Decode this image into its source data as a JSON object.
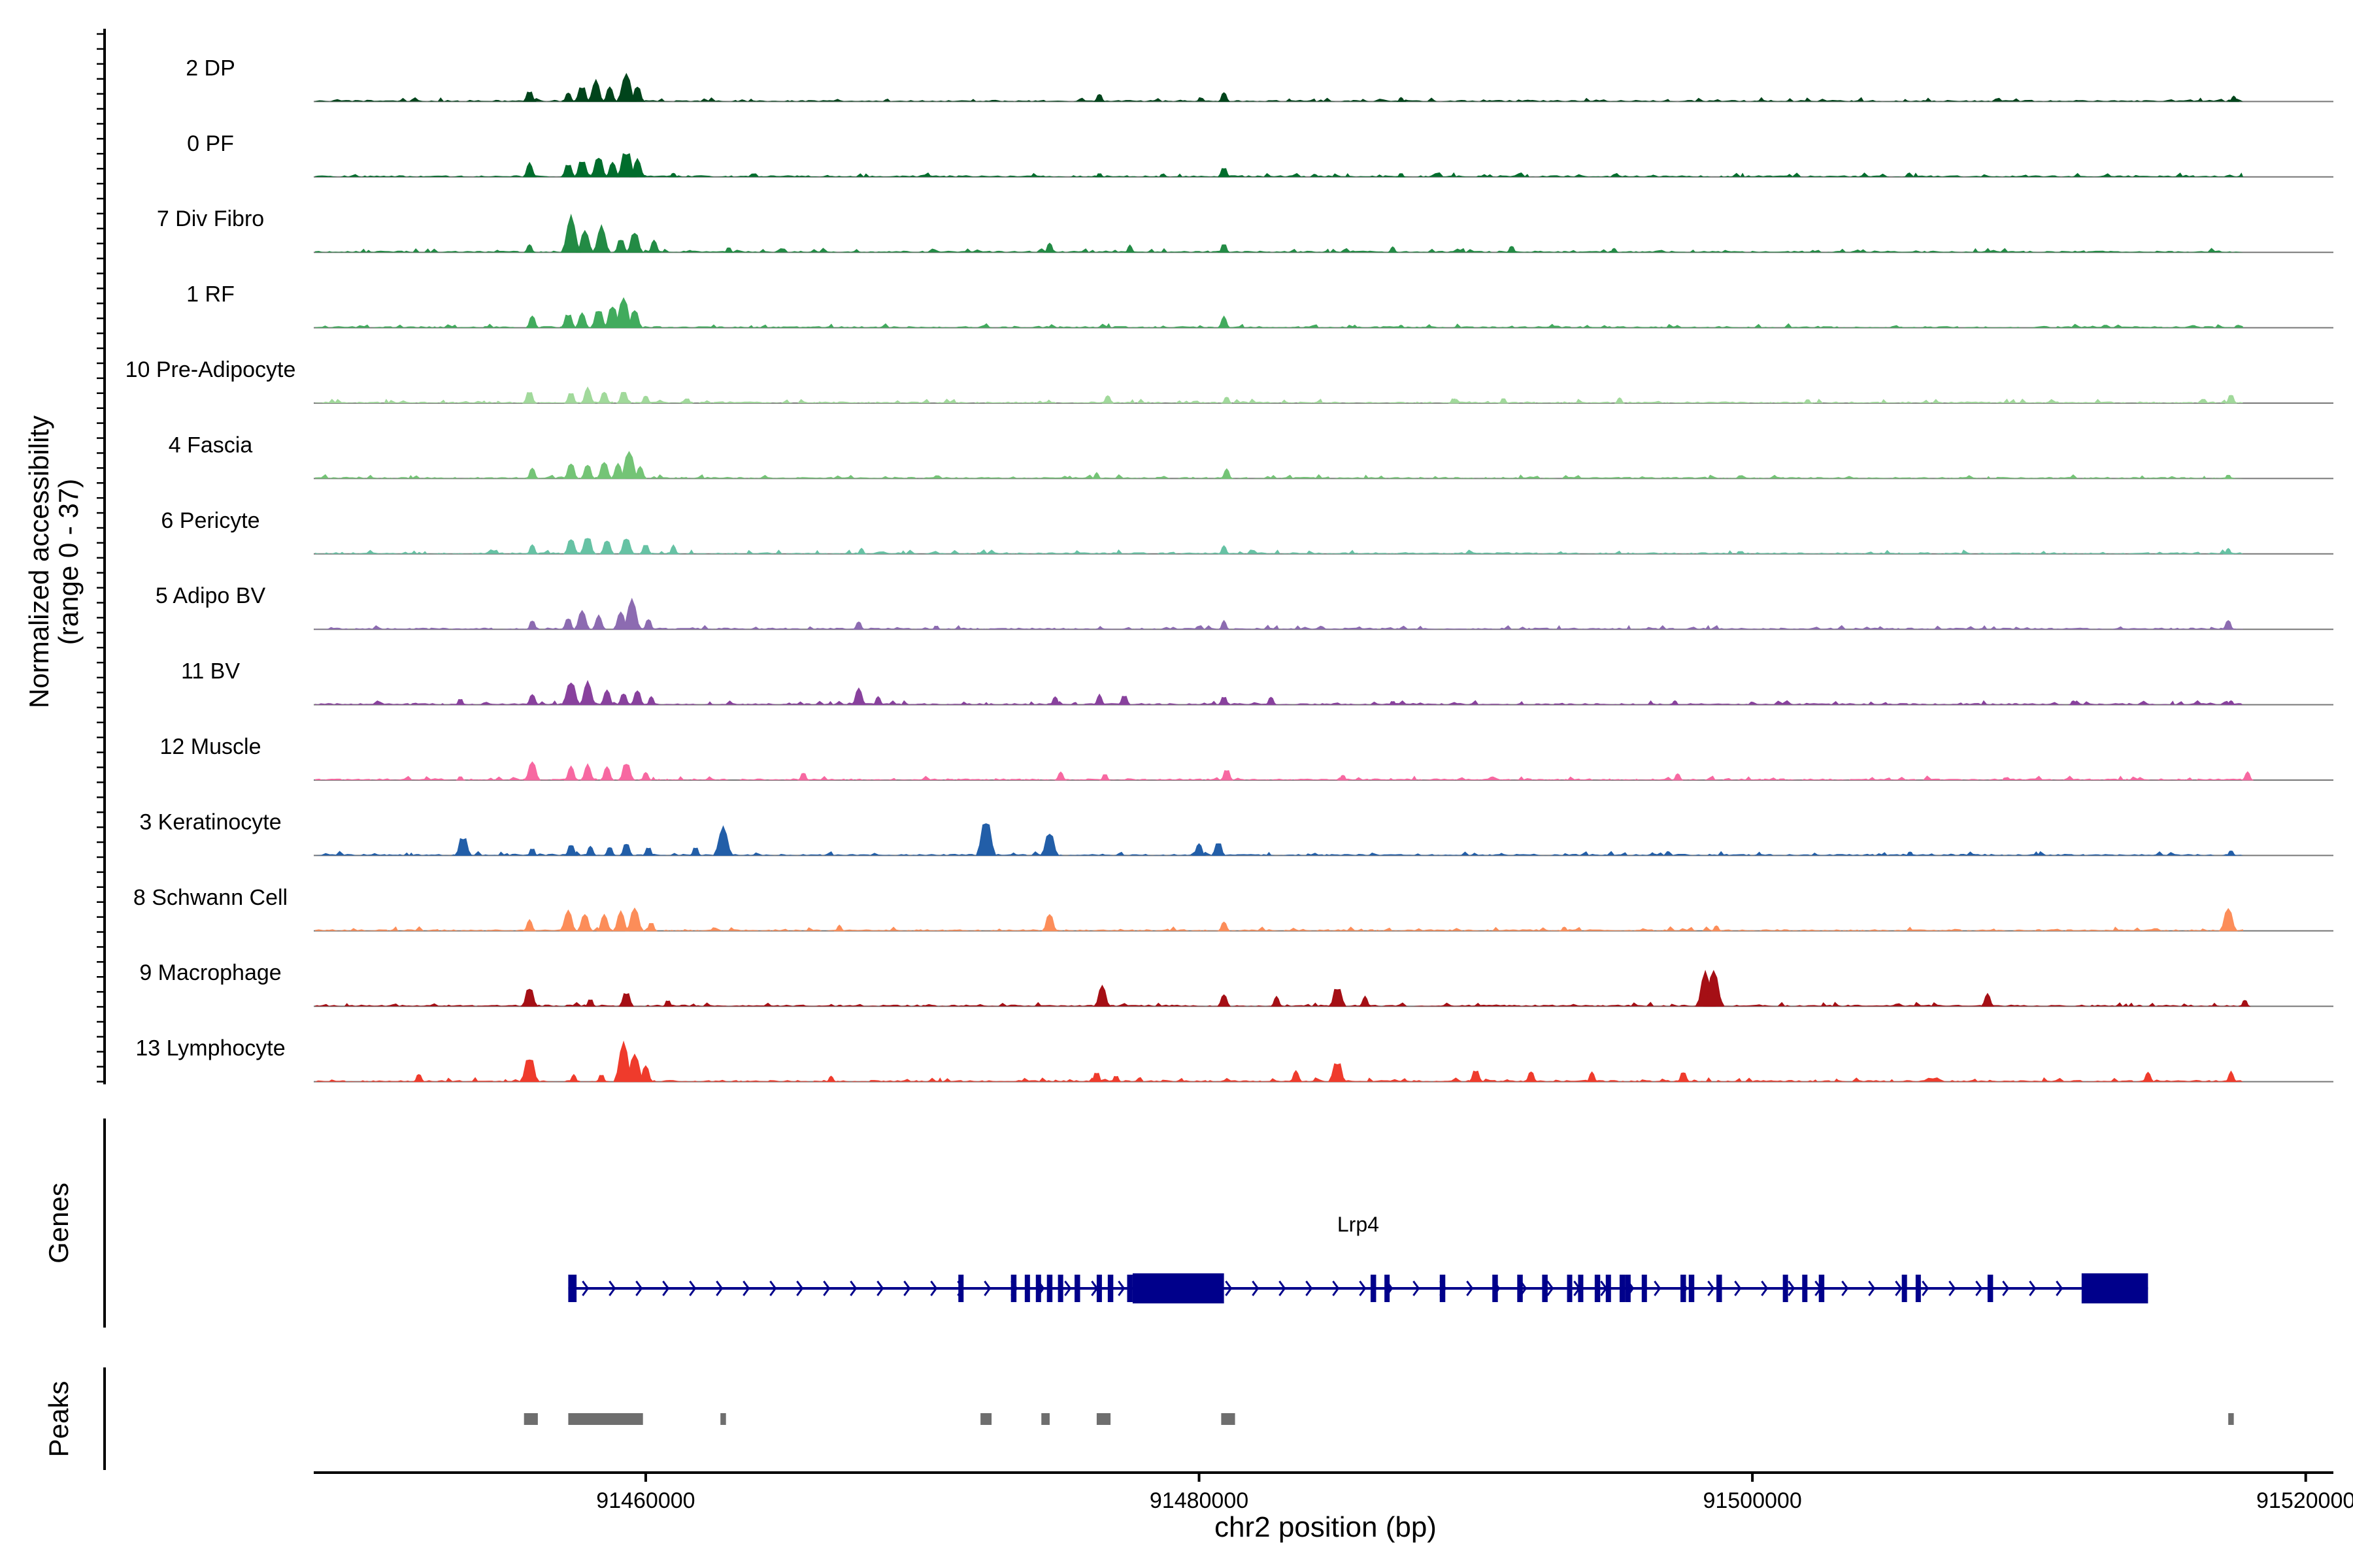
{
  "chart_data": {
    "type": "area",
    "genome_axis": {
      "label": "chr2 position (bp)",
      "range": [
        91448000,
        91521000
      ],
      "ticks": [
        91460000,
        91480000,
        91500000,
        91520000
      ],
      "tick_labels": [
        "91460000",
        "91480000",
        "91500000",
        "91520000"
      ]
    },
    "coverage_panel": {
      "ylabel_line1": "Normalized accessibility",
      "ylabel_line2": "(range 0 - 37)",
      "ymax": 37
    },
    "tracks": [
      {
        "name": "2 DP",
        "color": "#00441b",
        "peaks": [
          [
            91455800,
            9
          ],
          [
            91457200,
            7
          ],
          [
            91457700,
            13
          ],
          [
            91458200,
            15
          ],
          [
            91458700,
            11
          ],
          [
            91459300,
            20
          ],
          [
            91459700,
            12
          ],
          [
            91476400,
            6
          ],
          [
            91480900,
            7
          ],
          [
            91487300,
            3
          ],
          [
            91517400,
            4
          ]
        ]
      },
      {
        "name": "0 PF",
        "color": "#006d2c",
        "peaks": [
          [
            91455800,
            10
          ],
          [
            91457200,
            11
          ],
          [
            91457700,
            14
          ],
          [
            91458300,
            16
          ],
          [
            91458800,
            11
          ],
          [
            91459300,
            22
          ],
          [
            91459700,
            13
          ],
          [
            91461000,
            3
          ],
          [
            91476400,
            3
          ],
          [
            91480900,
            8
          ],
          [
            91487300,
            3
          ]
        ]
      },
      {
        "name": "7 Div Fibro",
        "color": "#238b45",
        "peaks": [
          [
            91455800,
            6
          ],
          [
            91457300,
            25
          ],
          [
            91457800,
            16
          ],
          [
            91458400,
            18
          ],
          [
            91459100,
            11
          ],
          [
            91459600,
            16
          ],
          [
            91460300,
            9
          ],
          [
            91463000,
            4
          ],
          [
            91474600,
            7
          ],
          [
            91477500,
            5
          ],
          [
            91480900,
            7
          ],
          [
            91487000,
            4
          ],
          [
            91491300,
            5
          ],
          [
            91495000,
            3
          ]
        ]
      },
      {
        "name": "1 RF",
        "color": "#41ab5d",
        "peaks": [
          [
            91455900,
            9
          ],
          [
            91457200,
            12
          ],
          [
            91457700,
            11
          ],
          [
            91458300,
            15
          ],
          [
            91458800,
            17
          ],
          [
            91459200,
            22
          ],
          [
            91459600,
            14
          ],
          [
            91480900,
            8
          ],
          [
            91487300,
            2
          ]
        ]
      },
      {
        "name": "10 Pre-Adipocyte",
        "color": "#a1d99b",
        "peaks": [
          [
            91455800,
            10
          ],
          [
            91457300,
            9
          ],
          [
            91457900,
            11
          ],
          [
            91458500,
            9
          ],
          [
            91459200,
            10
          ],
          [
            91460000,
            6
          ],
          [
            91461500,
            4
          ],
          [
            91476700,
            6
          ],
          [
            91481000,
            5
          ],
          [
            91489200,
            4
          ],
          [
            91491000,
            4
          ],
          [
            91495200,
            4
          ],
          [
            91502000,
            3
          ],
          [
            91517300,
            7
          ]
        ]
      },
      {
        "name": "4 Fascia",
        "color": "#74c476",
        "peaks": [
          [
            91455900,
            8
          ],
          [
            91457300,
            12
          ],
          [
            91457900,
            11
          ],
          [
            91458500,
            13
          ],
          [
            91459000,
            11
          ],
          [
            91459400,
            20
          ],
          [
            91459800,
            9
          ],
          [
            91476300,
            4
          ],
          [
            91481000,
            7
          ],
          [
            91517200,
            3
          ]
        ]
      },
      {
        "name": "6 Pericyte",
        "color": "#66c2a4",
        "peaks": [
          [
            91455900,
            7
          ],
          [
            91457300,
            12
          ],
          [
            91457900,
            14
          ],
          [
            91458600,
            11
          ],
          [
            91459300,
            13
          ],
          [
            91460000,
            8
          ],
          [
            91461000,
            6
          ],
          [
            91467800,
            4
          ],
          [
            91480900,
            6
          ],
          [
            91517200,
            4
          ]
        ]
      },
      {
        "name": "5 Adipo BV",
        "color": "#8c6bb1",
        "peaks": [
          [
            91455900,
            7
          ],
          [
            91457200,
            9
          ],
          [
            91457700,
            14
          ],
          [
            91458300,
            10
          ],
          [
            91459100,
            13
          ],
          [
            91459500,
            21
          ],
          [
            91460100,
            8
          ],
          [
            91467700,
            6
          ],
          [
            91470500,
            3
          ],
          [
            91480900,
            6
          ],
          [
            91517200,
            7
          ]
        ]
      },
      {
        "name": "11 BV",
        "color": "#88419d",
        "peaks": [
          [
            91453300,
            5
          ],
          [
            91455900,
            8
          ],
          [
            91457300,
            18
          ],
          [
            91457900,
            16
          ],
          [
            91458600,
            11
          ],
          [
            91459200,
            9
          ],
          [
            91459700,
            11
          ],
          [
            91460200,
            6
          ],
          [
            91467700,
            12
          ],
          [
            91468400,
            6
          ],
          [
            91474800,
            6
          ],
          [
            91476400,
            7
          ],
          [
            91477300,
            8
          ],
          [
            91480900,
            7
          ],
          [
            91482600,
            6
          ],
          [
            91487000,
            3
          ],
          [
            91497200,
            3
          ],
          [
            91511600,
            3
          ],
          [
            91517300,
            3
          ]
        ]
      },
      {
        "name": "12 Muscle",
        "color": "#f768a1",
        "peaks": [
          [
            91453300,
            3
          ],
          [
            91455900,
            14
          ],
          [
            91457300,
            10
          ],
          [
            91457900,
            11
          ],
          [
            91458600,
            10
          ],
          [
            91459300,
            14
          ],
          [
            91460000,
            6
          ],
          [
            91465700,
            6
          ],
          [
            91475000,
            6
          ],
          [
            91476600,
            5
          ],
          [
            91481000,
            9
          ],
          [
            91485200,
            4
          ],
          [
            91497300,
            5
          ],
          [
            91517900,
            6
          ]
        ]
      },
      {
        "name": "3 Keratinocyte",
        "color": "#225ea8",
        "peaks": [
          [
            91453400,
            16
          ],
          [
            91455900,
            6
          ],
          [
            91457300,
            9
          ],
          [
            91458000,
            7
          ],
          [
            91458700,
            7
          ],
          [
            91459300,
            10
          ],
          [
            91460100,
            7
          ],
          [
            91461800,
            7
          ],
          [
            91462800,
            20
          ],
          [
            91472300,
            29
          ],
          [
            91474600,
            18
          ],
          [
            91480000,
            9
          ],
          [
            91480700,
            11
          ],
          [
            91505700,
            3
          ],
          [
            91517300,
            4
          ]
        ]
      },
      {
        "name": "8 Schwann Cell",
        "color": "#fc8d59",
        "peaks": [
          [
            91455800,
            8
          ],
          [
            91457200,
            15
          ],
          [
            91457800,
            13
          ],
          [
            91458500,
            12
          ],
          [
            91459100,
            14
          ],
          [
            91459600,
            17
          ],
          [
            91460200,
            7
          ],
          [
            91467000,
            4
          ],
          [
            91474600,
            13
          ],
          [
            91480900,
            7
          ],
          [
            91493200,
            3
          ],
          [
            91498700,
            4
          ],
          [
            91517200,
            17
          ]
        ]
      },
      {
        "name": "9 Macrophage",
        "color": "#a50f15",
        "peaks": [
          [
            91455800,
            15
          ],
          [
            91458000,
            6
          ],
          [
            91459300,
            12
          ],
          [
            91460800,
            5
          ],
          [
            91476500,
            15
          ],
          [
            91480900,
            9
          ],
          [
            91482800,
            7
          ],
          [
            91485000,
            16
          ],
          [
            91486000,
            7
          ],
          [
            91498300,
            24
          ],
          [
            91498600,
            27
          ],
          [
            91508500,
            9
          ],
          [
            91517800,
            5
          ]
        ]
      },
      {
        "name": "13 Lymphocyte",
        "color": "#ef3b2c",
        "peaks": [
          [
            91451800,
            6
          ],
          [
            91455800,
            20
          ],
          [
            91457400,
            5
          ],
          [
            91458400,
            6
          ],
          [
            91459200,
            28
          ],
          [
            91459600,
            20
          ],
          [
            91460000,
            12
          ],
          [
            91466700,
            4
          ],
          [
            91476300,
            8
          ],
          [
            91477000,
            5
          ],
          [
            91483500,
            8
          ],
          [
            91485000,
            17
          ],
          [
            91490000,
            10
          ],
          [
            91492000,
            8
          ],
          [
            91494200,
            7
          ],
          [
            91497500,
            8
          ],
          [
            91514300,
            7
          ],
          [
            91517300,
            7
          ]
        ]
      }
    ],
    "genes_panel": {
      "ylabel": "Genes",
      "gene": {
        "name": "Lrp4",
        "strand": "+",
        "start": 91457200,
        "end": 91514300,
        "exons": [
          [
            91457200,
            91457500
          ],
          [
            91471300,
            91471400
          ],
          [
            91473200,
            91473400
          ],
          [
            91473700,
            91473800
          ],
          [
            91474100,
            91474200
          ],
          [
            91474500,
            91474700
          ],
          [
            91474900,
            91475000
          ],
          [
            91475500,
            91475700
          ],
          [
            91476300,
            91476400
          ],
          [
            91476700,
            91476900
          ],
          [
            91477400,
            91477600
          ],
          [
            91477600,
            91480900
          ],
          [
            91486200,
            91486400
          ],
          [
            91486700,
            91486800
          ],
          [
            91488700,
            91488900
          ],
          [
            91490600,
            91490800
          ],
          [
            91491500,
            91491700
          ],
          [
            91492400,
            91492600
          ],
          [
            91493300,
            91493400
          ],
          [
            91493700,
            91493800
          ],
          [
            91494300,
            91494500
          ],
          [
            91494700,
            91494800
          ],
          [
            91495200,
            91495400
          ],
          [
            91495400,
            91495600
          ],
          [
            91496000,
            91496100
          ],
          [
            91497400,
            91497600
          ],
          [
            91497700,
            91497900
          ],
          [
            91498700,
            91498900
          ],
          [
            91501100,
            91501200
          ],
          [
            91501800,
            91501900
          ],
          [
            91502400,
            91502600
          ],
          [
            91505400,
            91505500
          ],
          [
            91505900,
            91506000
          ],
          [
            91508500,
            91508700
          ],
          [
            91511900,
            91514300
          ]
        ]
      }
    },
    "peaks_panel": {
      "ylabel": "Peaks",
      "regions": [
        [
          91455600,
          91456100
        ],
        [
          91457200,
          91459900
        ],
        [
          91462700,
          91462900
        ],
        [
          91472100,
          91472500
        ],
        [
          91474300,
          91474600
        ],
        [
          91476300,
          91476800
        ],
        [
          91480800,
          91481300
        ],
        [
          91517200,
          91517400
        ]
      ]
    }
  }
}
